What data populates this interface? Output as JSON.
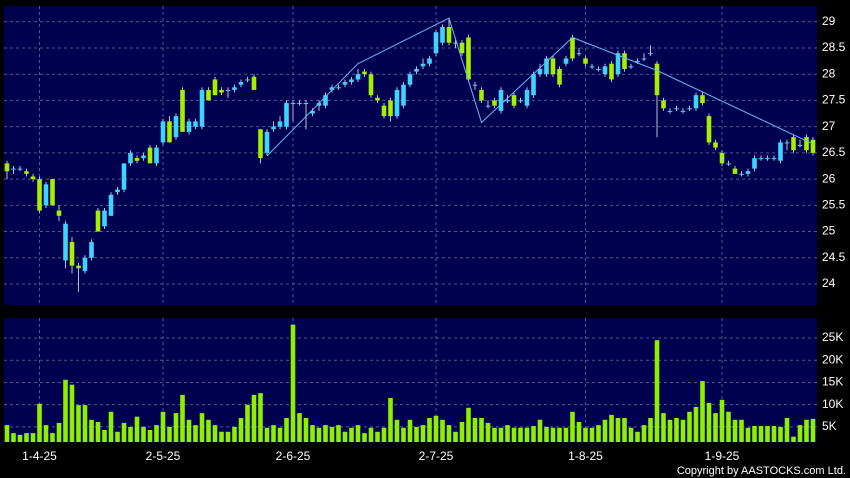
{
  "chart_data": {
    "type": "candlestick",
    "categories": [
      null,
      null,
      null,
      null,
      null,
      "1-4-25",
      null,
      null,
      null,
      null,
      null,
      null,
      null,
      null,
      null,
      null,
      null,
      null,
      null,
      null,
      null,
      null,
      null,
      null,
      "2-5-25",
      null,
      null,
      null,
      null,
      null,
      null,
      null,
      null,
      null,
      null,
      null,
      null,
      null,
      null,
      null,
      null,
      null,
      null,
      null,
      "2-6-25",
      null,
      null,
      null,
      null,
      null,
      null,
      null,
      null,
      null,
      null,
      null,
      null,
      null,
      null,
      null,
      null,
      null,
      null,
      null,
      null,
      null,
      "2-7-25",
      null,
      null,
      null,
      null,
      null,
      null,
      null,
      null,
      null,
      null,
      null,
      null,
      null,
      null,
      null,
      null,
      null,
      null,
      null,
      null,
      null,
      null,
      "1-8-25",
      null,
      null,
      null,
      null,
      null,
      null,
      null,
      null,
      null,
      null,
      null,
      null,
      null,
      null,
      null,
      null,
      null,
      null,
      null,
      null,
      "1-9-25",
      null,
      null,
      null,
      null,
      null,
      null,
      null,
      null,
      null,
      null,
      null,
      null,
      null,
      null
    ],
    "open": [
      26.3,
      26.2,
      26.2,
      26.15,
      26.05,
      26.0,
      25.5,
      26.0,
      25.4,
      24.45,
      24.8,
      24.35,
      24.25,
      24.5,
      25.4,
      25.1,
      25.3,
      25.75,
      25.8,
      26.3,
      26.4,
      26.4,
      26.6,
      26.3,
      26.7,
      27.1,
      26.8,
      27.7,
      26.9,
      27.0,
      27.0,
      27.7,
      27.9,
      27.7,
      27.7,
      27.7,
      27.8,
      27.9,
      27.95,
      26.95,
      26.5,
      26.95,
      27.0,
      27.0,
      27.45,
      27.45,
      27.45,
      27.25,
      27.4,
      27.4,
      27.7,
      27.75,
      27.8,
      27.85,
      27.9,
      28.05,
      28.0,
      27.55,
      27.4,
      27.5,
      27.2,
      27.4,
      27.8,
      28.05,
      28.15,
      28.2,
      28.4,
      28.6,
      28.9,
      28.6,
      28.6,
      28.7,
      27.8,
      27.7,
      27.4,
      27.5,
      27.3,
      27.5,
      27.6,
      27.5,
      27.4,
      27.6,
      28.0,
      28.0,
      28.3,
      28.1,
      28.2,
      28.7,
      28.4,
      28.3,
      28.15,
      28.1,
      28.0,
      28.2,
      28.0,
      28.4,
      28.15,
      28.25,
      28.3,
      28.4,
      28.2,
      27.5,
      27.3,
      27.35,
      27.3,
      27.35,
      27.35,
      27.6,
      27.2,
      26.7,
      26.5,
      26.3,
      26.2,
      26.1,
      26.1,
      26.2,
      26.4,
      26.4,
      26.4,
      26.35,
      26.7,
      26.8,
      26.65,
      26.8,
      26.75
    ],
    "high": [
      26.35,
      26.25,
      26.25,
      26.2,
      26.1,
      26.05,
      25.95,
      26.0,
      25.5,
      25.2,
      24.9,
      24.4,
      24.55,
      24.85,
      25.45,
      25.45,
      25.75,
      25.85,
      26.3,
      26.55,
      26.45,
      26.5,
      26.65,
      26.65,
      27.15,
      27.2,
      27.25,
      27.75,
      27.15,
      27.15,
      27.75,
      27.75,
      27.95,
      27.75,
      27.75,
      27.8,
      27.9,
      27.95,
      28.0,
      26.95,
      26.95,
      27.1,
      27.2,
      27.5,
      27.5,
      27.5,
      27.5,
      27.35,
      27.5,
      27.65,
      27.8,
      27.8,
      27.9,
      27.95,
      28.1,
      28.1,
      28.05,
      27.6,
      27.45,
      27.55,
      27.75,
      27.85,
      28.05,
      28.15,
      28.3,
      28.35,
      28.85,
      28.95,
      29.05,
      28.65,
      28.65,
      28.75,
      27.85,
      27.75,
      27.5,
      27.55,
      27.75,
      27.6,
      27.65,
      27.55,
      27.75,
      28.05,
      28.2,
      28.35,
      28.35,
      28.15,
      28.35,
      28.75,
      28.5,
      28.35,
      28.2,
      28.15,
      28.2,
      28.25,
      28.45,
      28.45,
      28.2,
      28.3,
      28.4,
      28.55,
      28.25,
      27.55,
      27.35,
      27.4,
      27.35,
      27.4,
      27.65,
      27.65,
      27.25,
      26.75,
      26.55,
      26.35,
      26.25,
      26.15,
      26.2,
      26.45,
      26.45,
      26.45,
      26.45,
      26.75,
      26.75,
      26.85,
      26.75,
      26.85,
      26.8
    ],
    "low": [
      26.0,
      26.1,
      26.15,
      26.05,
      25.95,
      25.35,
      25.45,
      25.5,
      25.2,
      24.3,
      24.2,
      23.85,
      24.2,
      24.45,
      25.0,
      25.05,
      25.3,
      25.7,
      25.75,
      26.25,
      26.3,
      26.35,
      26.3,
      26.25,
      26.65,
      26.7,
      26.75,
      26.9,
      26.85,
      26.95,
      26.95,
      27.5,
      27.6,
      27.6,
      27.55,
      27.65,
      27.75,
      27.85,
      27.7,
      26.3,
      26.45,
      26.9,
      26.95,
      26.95,
      27.1,
      27.4,
      26.95,
      27.2,
      27.3,
      27.35,
      27.65,
      27.7,
      27.75,
      27.8,
      27.85,
      27.95,
      27.55,
      27.45,
      27.15,
      27.1,
      27.15,
      27.35,
      27.75,
      28.0,
      28.1,
      28.15,
      28.35,
      28.55,
      28.55,
      28.5,
      28.35,
      27.85,
      27.7,
      27.45,
      27.35,
      27.35,
      27.25,
      27.45,
      27.35,
      27.45,
      27.35,
      27.55,
      27.95,
      27.95,
      27.95,
      27.75,
      28.15,
      28.25,
      28.35,
      28.15,
      28.1,
      28.05,
      27.95,
      27.85,
      27.95,
      28.05,
      28.1,
      28.2,
      28.25,
      28.35,
      26.8,
      27.3,
      27.25,
      27.3,
      27.25,
      27.3,
      27.3,
      27.4,
      26.65,
      26.55,
      26.25,
      26.25,
      26.1,
      26.05,
      26.05,
      26.15,
      26.35,
      26.35,
      26.35,
      26.3,
      26.55,
      26.5,
      26.6,
      26.5,
      26.45
    ],
    "close": [
      26.15,
      26.2,
      26.2,
      26.1,
      26.0,
      25.4,
      25.9,
      25.5,
      25.3,
      25.15,
      24.35,
      24.3,
      24.5,
      24.8,
      25.0,
      25.4,
      25.7,
      25.8,
      26.3,
      26.5,
      26.35,
      26.45,
      26.3,
      26.6,
      27.1,
      26.7,
      27.2,
      26.9,
      27.1,
      27.1,
      27.7,
      27.5,
      27.6,
      27.65,
      27.7,
      27.75,
      27.85,
      27.9,
      27.7,
      26.4,
      26.9,
      27.0,
      27.1,
      27.45,
      27.45,
      27.45,
      27.45,
      27.3,
      27.45,
      27.6,
      27.75,
      27.75,
      27.85,
      27.9,
      28.0,
      28.0,
      27.6,
      27.5,
      27.2,
      27.2,
      27.7,
      27.8,
      28.0,
      28.1,
      28.2,
      28.3,
      28.8,
      28.9,
      28.6,
      28.6,
      28.4,
      27.9,
      27.8,
      27.5,
      27.4,
      27.4,
      27.7,
      27.5,
      27.4,
      27.5,
      27.7,
      28.0,
      28.1,
      28.3,
      28.0,
      27.8,
      28.3,
      28.3,
      28.4,
      28.2,
      28.15,
      28.1,
      28.15,
      27.9,
      28.4,
      28.1,
      28.15,
      28.25,
      28.3,
      28.4,
      27.6,
      27.35,
      27.3,
      27.35,
      27.3,
      27.35,
      27.6,
      27.45,
      26.7,
      26.6,
      26.3,
      26.3,
      26.1,
      26.1,
      26.15,
      26.4,
      26.4,
      26.4,
      26.4,
      26.7,
      26.7,
      26.55,
      26.65,
      26.55,
      26.5
    ],
    "up_color": "#3fd3ff",
    "down_color": "#a4f000",
    "ylim": [
      23.6,
      29.3
    ],
    "yticks": [
      24,
      24.5,
      25,
      25.5,
      26,
      26.5,
      27,
      27.5,
      28,
      28.5,
      29
    ],
    "grid": true,
    "zigzag": {
      "color": "#6ab8f2",
      "points": [
        {
          "index": 40,
          "value": 26.44
        },
        {
          "index": 54,
          "value": 28.2
        },
        {
          "index": 68,
          "value": 29.07
        },
        {
          "index": 73,
          "value": 27.08
        },
        {
          "index": 87,
          "value": 28.7
        },
        {
          "index": 100,
          "value": 28.07
        },
        {
          "index": 124,
          "value": 26.67
        }
      ]
    },
    "volume": {
      "color": "#8cf000",
      "values": [
        5400,
        3600,
        3200,
        3600,
        3600,
        10200,
        5400,
        3600,
        5900,
        15600,
        14500,
        9900,
        9900,
        6600,
        6100,
        4300,
        8400,
        3900,
        5900,
        5000,
        7300,
        5000,
        4300,
        5400,
        8400,
        5000,
        8100,
        12200,
        6600,
        5400,
        8100,
        6600,
        5400,
        3900,
        3900,
        5000,
        7000,
        10000,
        12200,
        12600,
        4800,
        5400,
        4800,
        7000,
        28000,
        8100,
        7000,
        5400,
        4800,
        5400,
        5000,
        5400,
        3900,
        4800,
        5400,
        3600,
        4800,
        3900,
        4800,
        11500,
        6600,
        4800,
        6600,
        5000,
        5400,
        7000,
        7500,
        6600,
        5400,
        3900,
        6100,
        9300,
        7000,
        7000,
        5900,
        4800,
        4800,
        5400,
        4800,
        4800,
        4800,
        5200,
        6600,
        5000,
        4800,
        4800,
        4800,
        8400,
        6100,
        4800,
        4800,
        5400,
        6600,
        7700,
        7000,
        7000,
        4800,
        3900,
        5400,
        7000,
        24500,
        8100,
        6600,
        7000,
        6600,
        8400,
        9500,
        15300,
        10400,
        8100,
        11100,
        8400,
        6600,
        6600,
        4800,
        5200,
        5200,
        5200,
        5200,
        5000,
        7000,
        2800,
        5400,
        6600,
        6800
      ],
      "ylim": [
        1600,
        29500
      ],
      "yticks": [
        {
          "value": 5000,
          "label": "5K"
        },
        {
          "value": 10000,
          "label": "10K"
        },
        {
          "value": 15000,
          "label": "15K"
        },
        {
          "value": 20000,
          "label": "20K"
        },
        {
          "value": 25000,
          "label": "25K"
        }
      ]
    },
    "copyright": "Copyright by AASTOCKS.com Ltd."
  }
}
